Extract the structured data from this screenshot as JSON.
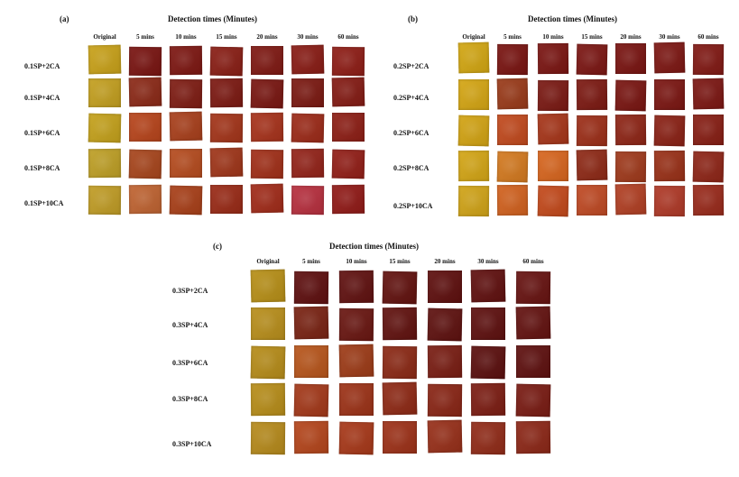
{
  "panels": [
    {
      "label": "(a)",
      "title": "Detection times (Minutes)",
      "columns": [
        "Original",
        "5 mins",
        "10 mins",
        "15 mins",
        "20 mins",
        "30 mins",
        "60 mins"
      ],
      "rows": [
        "0.1SP+2CA",
        "0.1SP+4CA",
        "0.1SP+6CA",
        "0.1SP+8CA",
        "0.1SP+10CA"
      ]
    },
    {
      "label": "(b)",
      "title": "Detection times (Minutes)",
      "columns": [
        "Original",
        "5 mins",
        "10 mins",
        "15 mins",
        "20 mins",
        "30 mins",
        "60 mins"
      ],
      "rows": [
        "0.2SP+2CA",
        "0.2SP+4CA",
        "0.2SP+6CA",
        "0.2SP+8CA",
        "0.2SP+10CA"
      ]
    },
    {
      "label": "(c)",
      "title": "Detection times (Minutes)",
      "columns": [
        "Original",
        "5 mins",
        "10 mins",
        "15 mins",
        "20 mins",
        "30 mins",
        "60 mins"
      ],
      "rows": [
        "0.3SP+2CA",
        "0.3SP+4CA",
        "0.3SP+6CA",
        "0.3SP+8CA",
        "0.3SP+10CA"
      ]
    }
  ],
  "colors": {
    "original": "#c9a21a",
    "swatches": [
      [
        "#c9a21a",
        "#7a1512",
        "#7e1813",
        "#8a1f16",
        "#801a14",
        "#8a1d16",
        "#8f1e17"
      ],
      [
        "#c4a020",
        "#8c2a18",
        "#7f1d14",
        "#7d1a13",
        "#7a1712",
        "#7c1a13",
        "#851c15"
      ],
      [
        "#c5a21c",
        "#b8451c",
        "#a9401c",
        "#a4351a",
        "#a8331c",
        "#9d2b19",
        "#8e1f16"
      ],
      [
        "#bfa026",
        "#a8461d",
        "#b64c1f",
        "#a0361a",
        "#a23019",
        "#94241a",
        "#931f18"
      ],
      [
        "#c19d26",
        "#c06432",
        "#a94019",
        "#9a2b17",
        "#a22c1a",
        "#b8303f",
        "#921b18"
      ],
      [
        "#d3a713",
        "#7a1512",
        "#7b1613",
        "#7c1714",
        "#7a1512",
        "#7e1814",
        "#821a15"
      ],
      [
        "#d5a614",
        "#9a3b1a",
        "#7b1a14",
        "#7d1a13",
        "#7a1612",
        "#7c1713",
        "#7d1814"
      ],
      [
        "#d3a414",
        "#c24a1e",
        "#a7361a",
        "#9d2f19",
        "#8f2617",
        "#8b2216",
        "#881f15"
      ],
      [
        "#d4a616",
        "#d47a20",
        "#d8661f",
        "#8f2a17",
        "#a03a1c",
        "#9a3118",
        "#8f2618"
      ],
      [
        "#d1a418",
        "#d2621f",
        "#c44a1c",
        "#c04a24",
        "#b24024",
        "#b03a28",
        "#9a2b1c"
      ],
      [
        "#b89018",
        "#5f1010",
        "#611211",
        "#631310",
        "#5f100f",
        "#611110",
        "#681412"
      ],
      [
        "#b98f1c",
        "#7a2414",
        "#6a1712",
        "#621310",
        "#5f1210",
        "#5f1110",
        "#641311"
      ],
      [
        "#b78d1a",
        "#b8561c",
        "#9e3c18",
        "#8c2a16",
        "#7a1e14",
        "#5c100f",
        "#5f1110"
      ],
      [
        "#b88e1a",
        "#a4391a",
        "#9d3318",
        "#8f2a16",
        "#8a2616",
        "#7d1e14",
        "#7a1c14"
      ],
      [
        "#b78b1c",
        "#b5461c",
        "#a8391a",
        "#9e3219",
        "#98301a",
        "#922c19",
        "#8d2818"
      ]
    ]
  }
}
